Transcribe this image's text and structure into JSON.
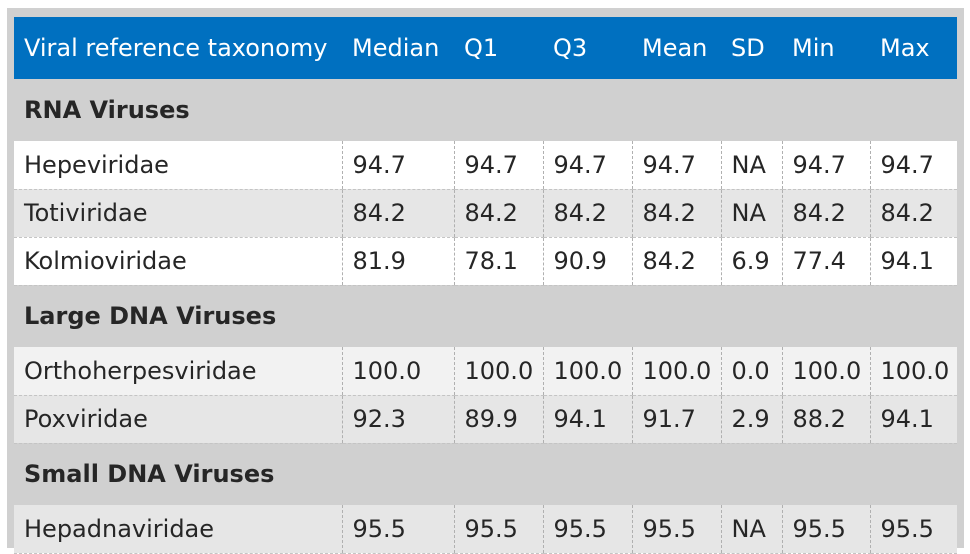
{
  "table": {
    "headers": [
      "Viral reference taxonomy",
      "Median",
      "Q1",
      "Q3",
      "Mean",
      "SD",
      "Min",
      "Max"
    ],
    "groups": [
      {
        "name": "RNA Viruses",
        "rows": [
          [
            "Hepeviridae",
            "94.7",
            "94.7",
            "94.7",
            "94.7",
            "NA",
            "94.7",
            "94.7"
          ],
          [
            "Totiviridae",
            "84.2",
            "84.2",
            "84.2",
            "84.2",
            "NA",
            "84.2",
            "84.2"
          ],
          [
            "Kolmioviridae",
            "81.9",
            "78.1",
            "90.9",
            "84.2",
            "6.9",
            "77.4",
            "94.1"
          ]
        ]
      },
      {
        "name": "Large DNA Viruses",
        "rows": [
          [
            "Orthoherpesviridae",
            "100.0",
            "100.0",
            "100.0",
            "100.0",
            "0.0",
            "100.0",
            "100.0"
          ],
          [
            "Poxviridae",
            "92.3",
            "89.9",
            "94.1",
            "91.7",
            "2.9",
            "88.2",
            "94.1"
          ]
        ]
      },
      {
        "name": "Small DNA Viruses",
        "rows": [
          [
            "Hepadnaviridae",
            "95.5",
            "95.5",
            "95.5",
            "95.5",
            "NA",
            "95.5",
            "95.5"
          ]
        ]
      }
    ]
  },
  "colors": {
    "header_bg": "#0070c0",
    "header_text": "#ffffff",
    "group_bg": "#d0d0d0",
    "row_light": "#ffffff",
    "row_gray": "#e6e6e6"
  }
}
